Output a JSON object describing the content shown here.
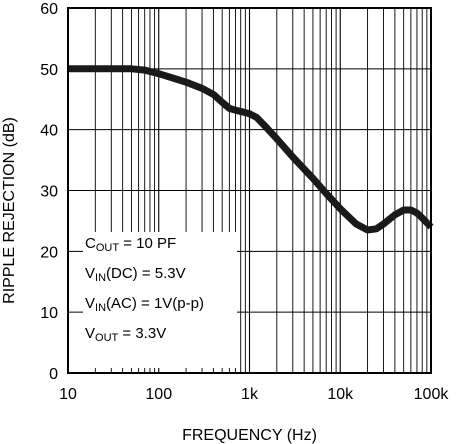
{
  "chart_data": {
    "type": "line",
    "title": "",
    "xlabel": "FREQUENCY (Hz)",
    "ylabel": "RIPPLE REJECTION (dB)",
    "xscale": "log",
    "xlim": [
      10,
      100000
    ],
    "ylim": [
      0,
      60
    ],
    "grid": true,
    "xticks": [
      10,
      100,
      1000,
      10000,
      100000
    ],
    "xtick_labels": [
      "10",
      "100",
      "1k",
      "10k",
      "100k"
    ],
    "yticks": [
      0,
      10,
      20,
      30,
      40,
      50,
      60
    ],
    "ytick_labels": [
      "0",
      "10",
      "20",
      "30",
      "40",
      "50",
      "60"
    ],
    "series": [
      {
        "x": [
          10,
          20,
          30,
          50,
          70,
          100,
          150,
          200,
          300,
          400,
          500,
          600,
          700,
          800,
          900,
          1000,
          1200,
          1500,
          2000,
          3000,
          5000,
          7000,
          10000,
          15000,
          20000,
          25000,
          30000,
          40000,
          50000,
          60000,
          70000,
          80000,
          100000
        ],
        "y": [
          50,
          50,
          50,
          50,
          49.8,
          49.2,
          48.4,
          47.8,
          46.8,
          45.8,
          44.5,
          43.5,
          43.2,
          43.0,
          42.8,
          42.6,
          42.0,
          40.5,
          38.5,
          35.5,
          32.0,
          29.5,
          27.0,
          24.5,
          23.5,
          23.7,
          24.5,
          26.0,
          26.8,
          26.8,
          26.3,
          25.5,
          24.0
        ],
        "color": "#1a1a1a"
      }
    ],
    "annotations": {
      "cout_prefix": "C",
      "cout_sub": "OUT",
      "cout_value": " = 10 PF",
      "vin_dc_prefix": "V",
      "vin_dc_sub": "IN",
      "vin_dc_value": "(DC) = 5.3V",
      "vin_ac_prefix": "V",
      "vin_ac_sub": "IN",
      "vin_ac_value": "(AC) = 1V(p-p)",
      "vout_prefix": "V",
      "vout_sub": "OUT",
      "vout_value": " = 3.3V"
    }
  }
}
